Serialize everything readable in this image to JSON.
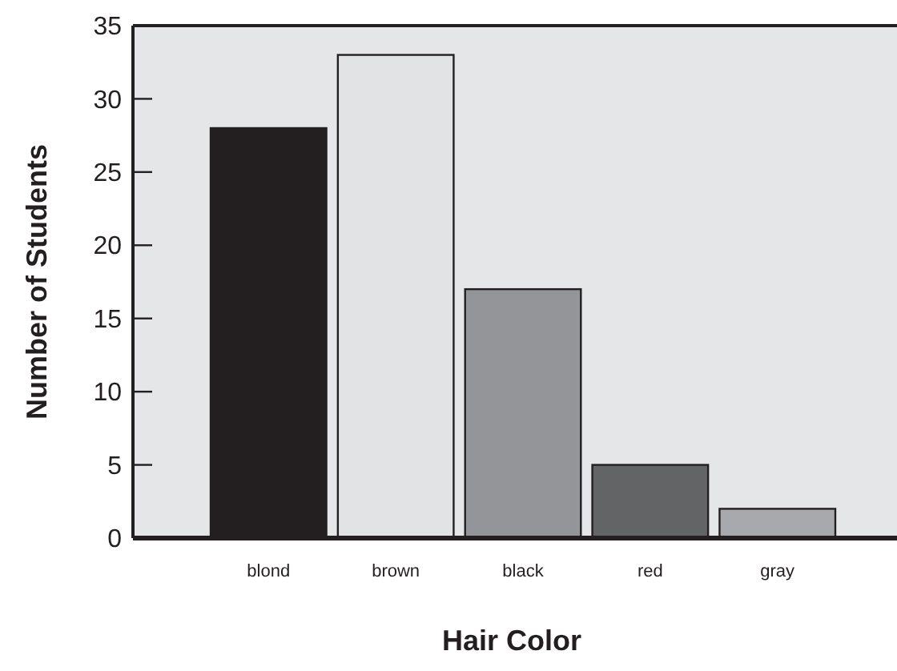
{
  "chart_data": {
    "type": "bar",
    "xlabel": "Hair Color",
    "ylabel": "Number of Students",
    "categories": [
      "blond",
      "brown",
      "black",
      "red",
      "gray"
    ],
    "values": [
      28,
      33,
      17,
      5,
      2
    ],
    "colors": [
      "#231f20",
      "#e2e3e5",
      "#939598",
      "#636466",
      "#a7a9ac"
    ],
    "ylim": [
      0,
      35
    ],
    "yticks": [
      0,
      5,
      10,
      15,
      20,
      25,
      30,
      35
    ],
    "grid": false
  }
}
